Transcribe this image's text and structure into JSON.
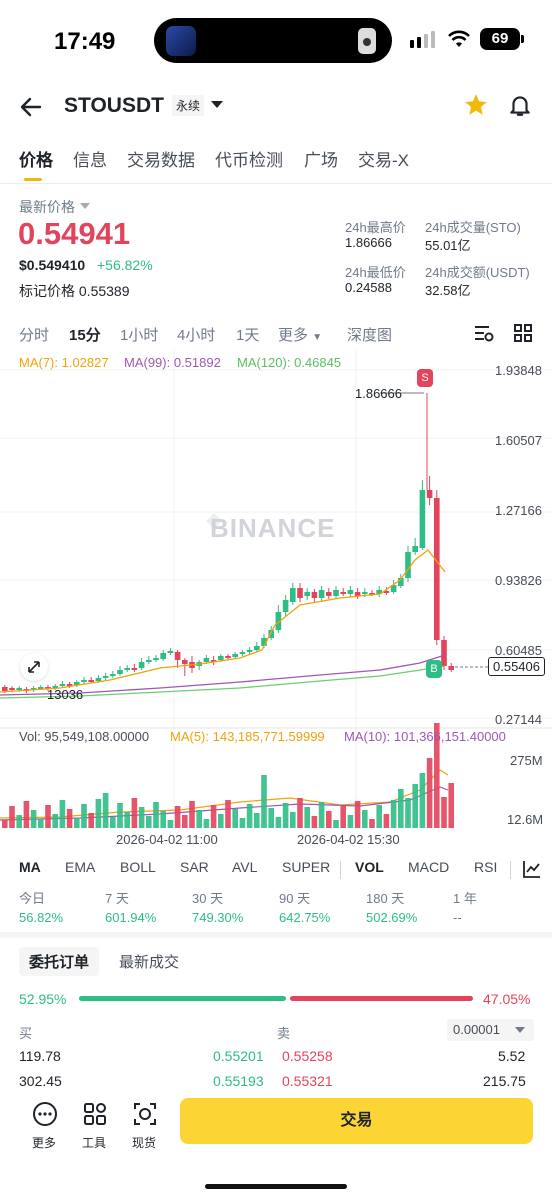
{
  "status_bar": {
    "time": "17:49",
    "battery": "69"
  },
  "header": {
    "symbol": "STOUSDT",
    "contract_type": "永续"
  },
  "tabs": [
    "价格",
    "信息",
    "交易数据",
    "代币检测",
    "广场",
    "交易-X"
  ],
  "price": {
    "label": "最新价格",
    "last": "0.54941",
    "usd": "$0.549410",
    "change": "+56.82%",
    "mark_label": "标记价格",
    "mark_value": "0.55389"
  },
  "stats": {
    "high_label": "24h最高价",
    "high": "1.86666",
    "vol_sto_label": "24h成交量(STO)",
    "vol_sto": "55.01亿",
    "low_label": "24h最低价",
    "low": "0.24588",
    "vol_usdt_label": "24h成交额(USDT)",
    "vol_usdt": "32.58亿"
  },
  "intervals": [
    "分时",
    "15分",
    "1小时",
    "4小时",
    "1天",
    "更多",
    "深度图"
  ],
  "ma": {
    "ma7": "MA(7): 1.02827",
    "ma99": "MA(99): 0.51892",
    "ma120": "MA(120): 0.46845"
  },
  "colors": {
    "up": "#2ebd85",
    "down": "#e2445c",
    "ma7": "#f0a30a",
    "ma99": "#9b59b6",
    "ma120": "#6ccf6e",
    "accent": "#fcd535"
  },
  "watermark": "BINANCE",
  "price_axis": [
    "1.93848",
    "1.60507",
    "1.27166",
    "0.93826",
    "0.60485",
    "0.27144"
  ],
  "current_price_tag": "0.55406",
  "high_marker": "1.86666",
  "low_marker_partial": "13036",
  "sell_marker": "S",
  "buy_marker": "B",
  "volume": {
    "vol": "Vol: 95,549,108.00000",
    "ma5": "MA(5): 143,185,771.59999",
    "ma10": "MA(10): 101,366,151.40000",
    "axis_top": "275M",
    "axis_bottom": "12.6M"
  },
  "dates": [
    "2026-04-02 11:00",
    "2026-04-02 15:30"
  ],
  "indicators": [
    "MA",
    "EMA",
    "BOLL",
    "SAR",
    "AVL",
    "SUPER",
    "VOL",
    "MACD",
    "RSI"
  ],
  "performance": [
    {
      "label": "今日",
      "value": "56.82%"
    },
    {
      "label": "7 天",
      "value": "601.94%"
    },
    {
      "label": "30 天",
      "value": "749.30%"
    },
    {
      "label": "90 天",
      "value": "642.75%"
    },
    {
      "label": "180 天",
      "value": "502.69%"
    },
    {
      "label": "1 年",
      "value": "--"
    }
  ],
  "orderbook": {
    "tabs": [
      "委托订单",
      "最新成交"
    ],
    "buy_pct": "52.95%",
    "sell_pct": "47.05%",
    "buy_ratio": 0.5295,
    "buy_label": "买",
    "sell_label": "卖",
    "precision": "0.00001",
    "rows": [
      {
        "bid_qty": "119.78",
        "bid": "0.55201",
        "ask": "0.55258",
        "ask_qty": "5.52"
      },
      {
        "bid_qty": "302.45",
        "bid": "0.55193",
        "ask": "0.55321",
        "ask_qty": "215.75"
      }
    ]
  },
  "bottom_bar": {
    "more": "更多",
    "tools": "工具",
    "spot": "现货",
    "trade": "交易"
  }
}
